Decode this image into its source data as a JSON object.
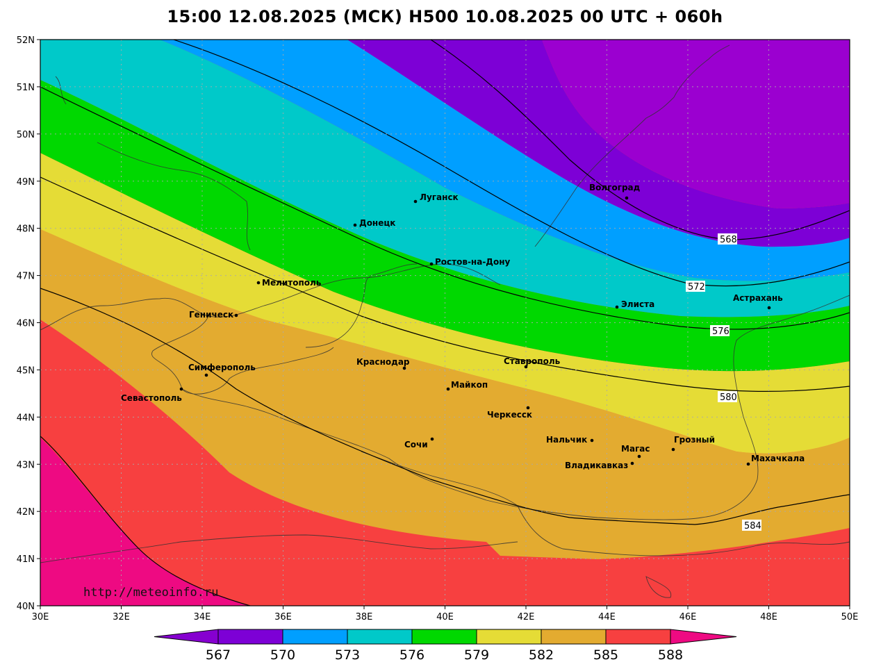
{
  "title": "15:00 12.08.2025 (МСК) H500  10.08.2025 00 UTC + 060h",
  "source_url": "http://meteoinfo.ru",
  "axes": {
    "lon_labels": [
      "30E",
      "32E",
      "34E",
      "36E",
      "38E",
      "40E",
      "42E",
      "44E",
      "46E",
      "48E",
      "50E"
    ],
    "lat_labels": [
      "52N",
      "51N",
      "50N",
      "49N",
      "48N",
      "47N",
      "46N",
      "45N",
      "44N",
      "43N",
      "42N",
      "41N",
      "40N"
    ]
  },
  "colors": {
    "b567": "#8600d0",
    "b570": "#7d00d6",
    "b573": "#009fff",
    "b576": "#00c9c9",
    "b579": "#00d800",
    "b582": "#e5dc36",
    "b585": "#e3ab30",
    "b588": "#f74040",
    "b591": "#ee0a82",
    "upper_purple": "#9b00d0"
  },
  "colorbar": {
    "labels": [
      "567",
      "570",
      "573",
      "576",
      "579",
      "582",
      "585",
      "588"
    ]
  },
  "isolines": [
    {
      "id": "iso-568",
      "label": "568"
    },
    {
      "id": "iso-572",
      "label": "572"
    },
    {
      "id": "iso-576",
      "label": "576"
    },
    {
      "id": "iso-580",
      "label": "580"
    },
    {
      "id": "iso-584",
      "label": "584"
    }
  ],
  "cities": [
    {
      "name": "Волгоград"
    },
    {
      "name": "Луганск"
    },
    {
      "name": "Донецк"
    },
    {
      "name": "Ростов-на-Дону"
    },
    {
      "name": "Мелитополь"
    },
    {
      "name": "Геническ"
    },
    {
      "name": "Элиста"
    },
    {
      "name": "Астрахань"
    },
    {
      "name": "Симферополь"
    },
    {
      "name": "Краснодар"
    },
    {
      "name": "Ставрополь"
    },
    {
      "name": "Севастополь"
    },
    {
      "name": "Майкоп"
    },
    {
      "name": "Черкесск"
    },
    {
      "name": "Сочи"
    },
    {
      "name": "Нальчик"
    },
    {
      "name": "Магас"
    },
    {
      "name": "Грозный"
    },
    {
      "name": "Владикавказ"
    },
    {
      "name": "Махачкала"
    }
  ]
}
